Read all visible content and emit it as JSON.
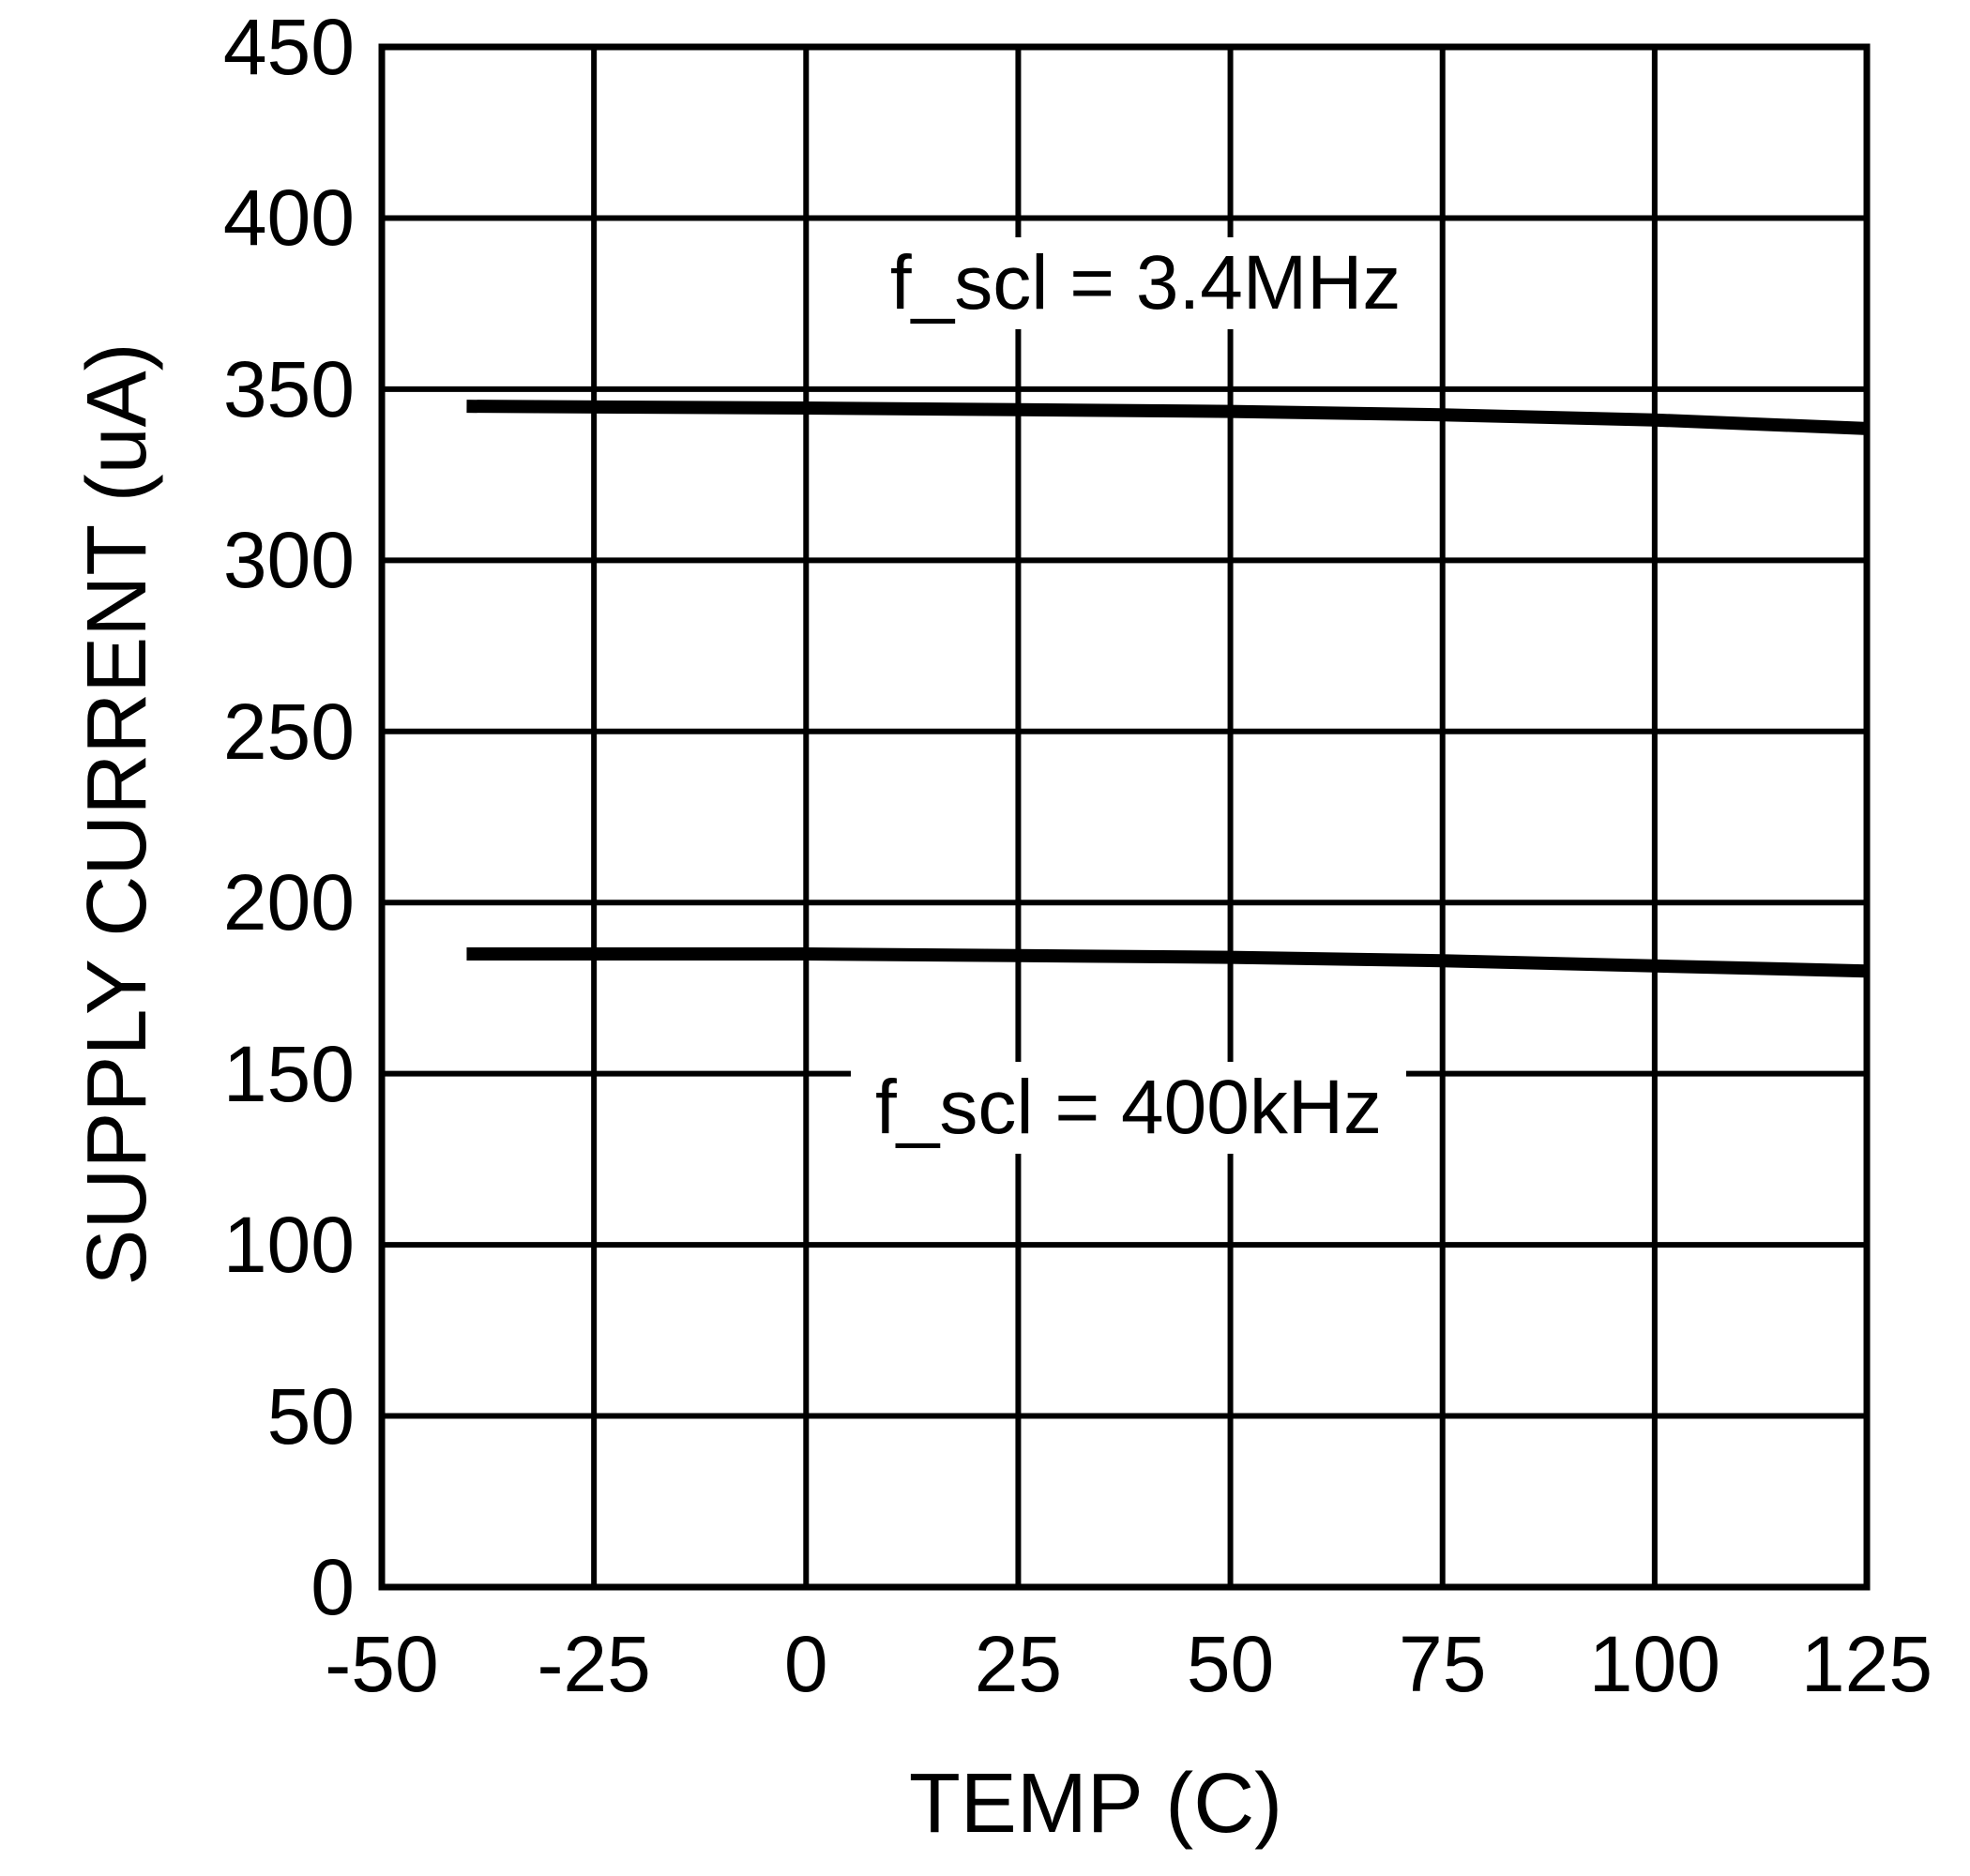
{
  "figure": {
    "background_color": "#ffffff",
    "line_color": "#000000"
  },
  "chart_data": {
    "type": "line",
    "title": "",
    "xlabel": "TEMP (C)",
    "ylabel": "SUPPLY CURRENT (uA)",
    "xlim": [
      -50,
      125
    ],
    "ylim": [
      0,
      450
    ],
    "x_ticks": [
      -50,
      -25,
      0,
      25,
      50,
      75,
      100,
      125
    ],
    "y_ticks": [
      450,
      400,
      350,
      300,
      250,
      200,
      150,
      100,
      50,
      0
    ],
    "grid": true,
    "legend_position": "inline-annotations",
    "series": [
      {
        "name": "f_scl = 3.4MHz",
        "x": [
          -40,
          0,
          25,
          50,
          75,
          100,
          125
        ],
        "values": [
          345,
          344.5,
          344,
          343.5,
          342.5,
          341,
          338.5
        ]
      },
      {
        "name": "f_scl = 400kHz",
        "x": [
          -40,
          0,
          25,
          50,
          75,
          100,
          125
        ],
        "values": [
          185,
          185,
          184.5,
          184,
          183,
          181.5,
          180
        ]
      }
    ],
    "annotations": [
      {
        "text": "f_scl = 3.4MHz",
        "x": 40,
        "y": 381
      },
      {
        "text": "f_scl = 400kHz",
        "x": 38,
        "y": 140
      }
    ]
  }
}
